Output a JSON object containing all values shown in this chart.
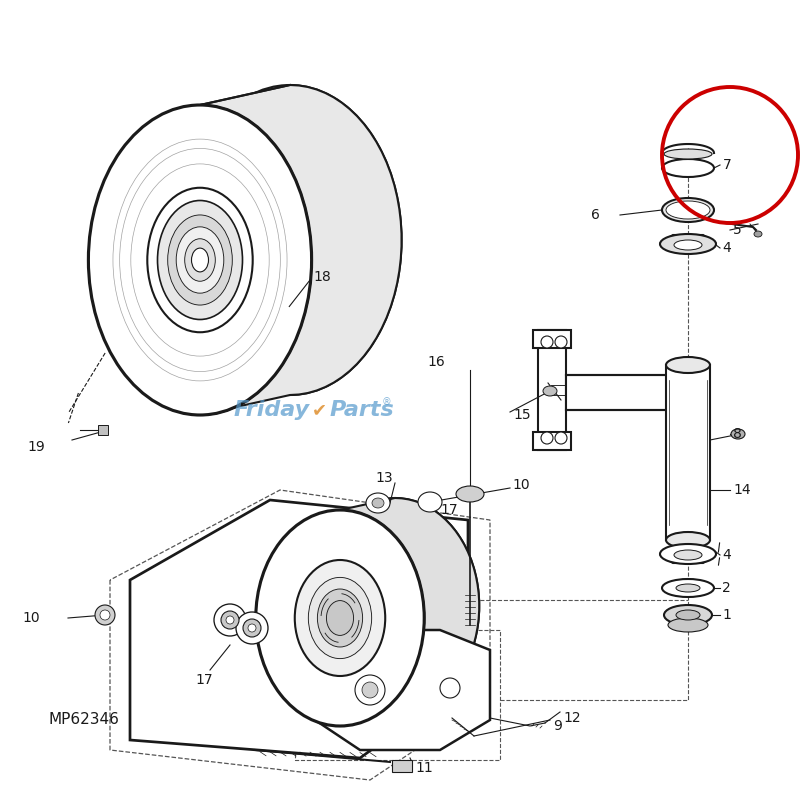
{
  "bg_color": "#ffffff",
  "line_color": "#1a1a1a",
  "dashed_color": "#555555",
  "red_circle_color": "#cc0000",
  "friday_parts_blue": "#5599cc",
  "friday_parts_orange": "#dd8822",
  "label_fontsize": 10,
  "mp_label": "MP62346"
}
